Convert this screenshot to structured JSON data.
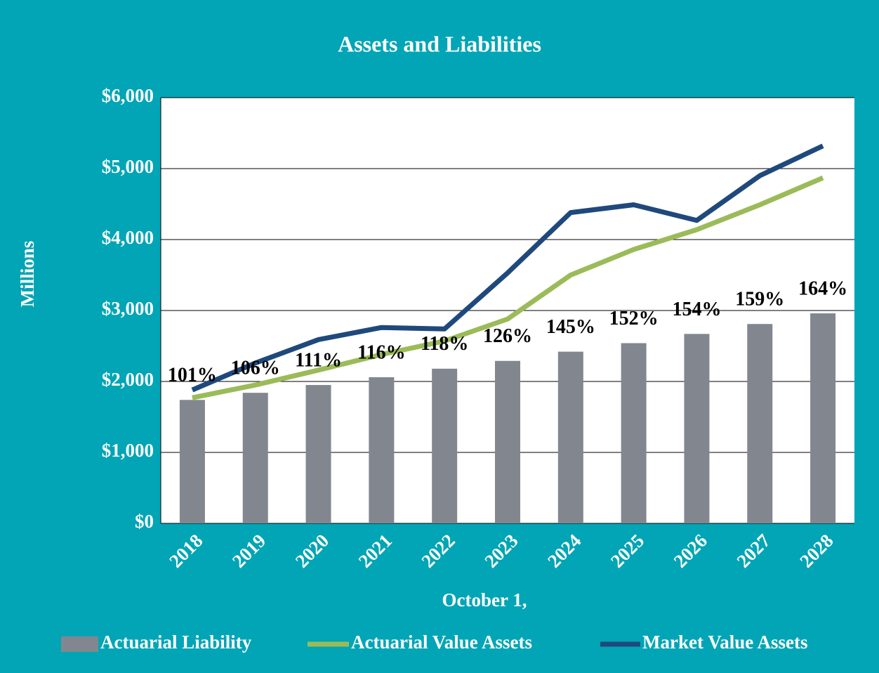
{
  "chart_data": {
    "type": "bar_line",
    "title": "Assets and Liabilities",
    "x_label": "October 1,",
    "y_label": "Millions",
    "categories": [
      "2018",
      "2019",
      "2020",
      "2021",
      "2022",
      "2023",
      "2024",
      "2025",
      "2026",
      "2027",
      "2028"
    ],
    "series": [
      {
        "name": "Actuarial Liability",
        "type": "bar",
        "color": "#82878f",
        "values": [
          1740,
          1840,
          1950,
          2060,
          2180,
          2290,
          2420,
          2540,
          2670,
          2810,
          2960
        ]
      },
      {
        "name": "Actuarial Value Assets",
        "type": "line",
        "color": "#9bbb59",
        "values": [
          1770,
          1950,
          2160,
          2380,
          2570,
          2880,
          3500,
          3860,
          4140,
          4490,
          4870
        ]
      },
      {
        "name": "Market Value Assets",
        "type": "line",
        "color": "#1f497d",
        "values": [
          1880,
          2260,
          2590,
          2760,
          2740,
          3530,
          4380,
          4490,
          4270,
          4900,
          5320
        ]
      }
    ],
    "funded_ratio": {
      "values": [
        101,
        106,
        111,
        116,
        118,
        126,
        145,
        152,
        154,
        159,
        164
      ],
      "value_labels": [
        "101%",
        "106%",
        "111%",
        "116%",
        "118%",
        "126%",
        "145%",
        "152%",
        "154%",
        "159%",
        "164%"
      ]
    },
    "ylim": [
      0,
      6000
    ],
    "yticks": [
      {
        "value": 0,
        "label": "$0"
      },
      {
        "value": 1000,
        "label": "$1,000"
      },
      {
        "value": 2000,
        "label": "$2,000"
      },
      {
        "value": 3000,
        "label": "$3,000"
      },
      {
        "value": 4000,
        "label": "$4,000"
      },
      {
        "value": 5000,
        "label": "$5,000"
      },
      {
        "value": 6000,
        "label": "$6,000"
      }
    ],
    "grid": true,
    "legend": "bottom"
  }
}
